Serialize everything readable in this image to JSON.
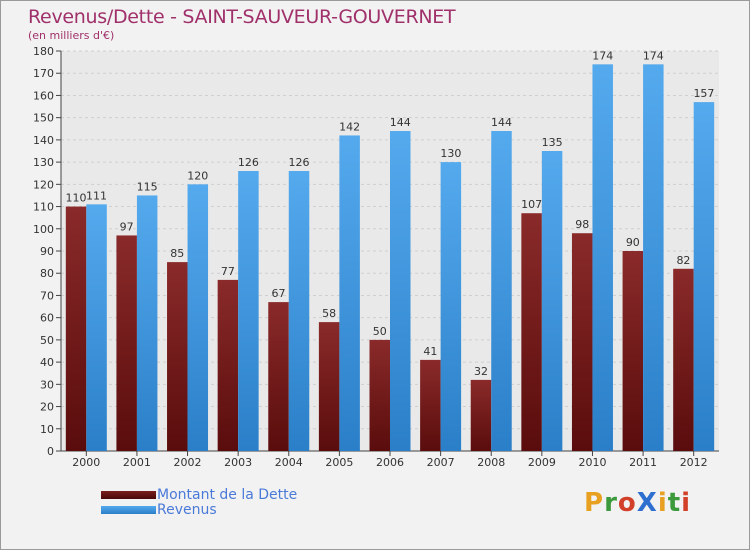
{
  "title": "Revenus/Dette - SAINT-SAUVEUR-GOUVERNET",
  "subtitle": "(en milliers d'€)",
  "logo_text": "ProXiti",
  "colors": {
    "dette": "#7a1e1e",
    "revenus": "#3d94dc",
    "title": "#a0306a"
  },
  "chart_data": {
    "type": "bar",
    "categories": [
      "2000",
      "2001",
      "2002",
      "2003",
      "2004",
      "2005",
      "2006",
      "2007",
      "2008",
      "2009",
      "2010",
      "2011",
      "2012"
    ],
    "series": [
      {
        "name": "Montant de la Dette",
        "values": [
          110,
          97,
          85,
          77,
          67,
          58,
          50,
          41,
          32,
          107,
          98,
          90,
          82
        ]
      },
      {
        "name": "Revenus",
        "values": [
          111,
          115,
          120,
          126,
          126,
          142,
          144,
          130,
          144,
          135,
          174,
          174,
          157
        ]
      }
    ],
    "ylim": [
      0,
      180
    ],
    "yticks": [
      0,
      10,
      20,
      30,
      40,
      50,
      60,
      70,
      80,
      90,
      100,
      110,
      120,
      130,
      140,
      150,
      160,
      170,
      180
    ],
    "grid": true,
    "legend": "bottom-left"
  }
}
